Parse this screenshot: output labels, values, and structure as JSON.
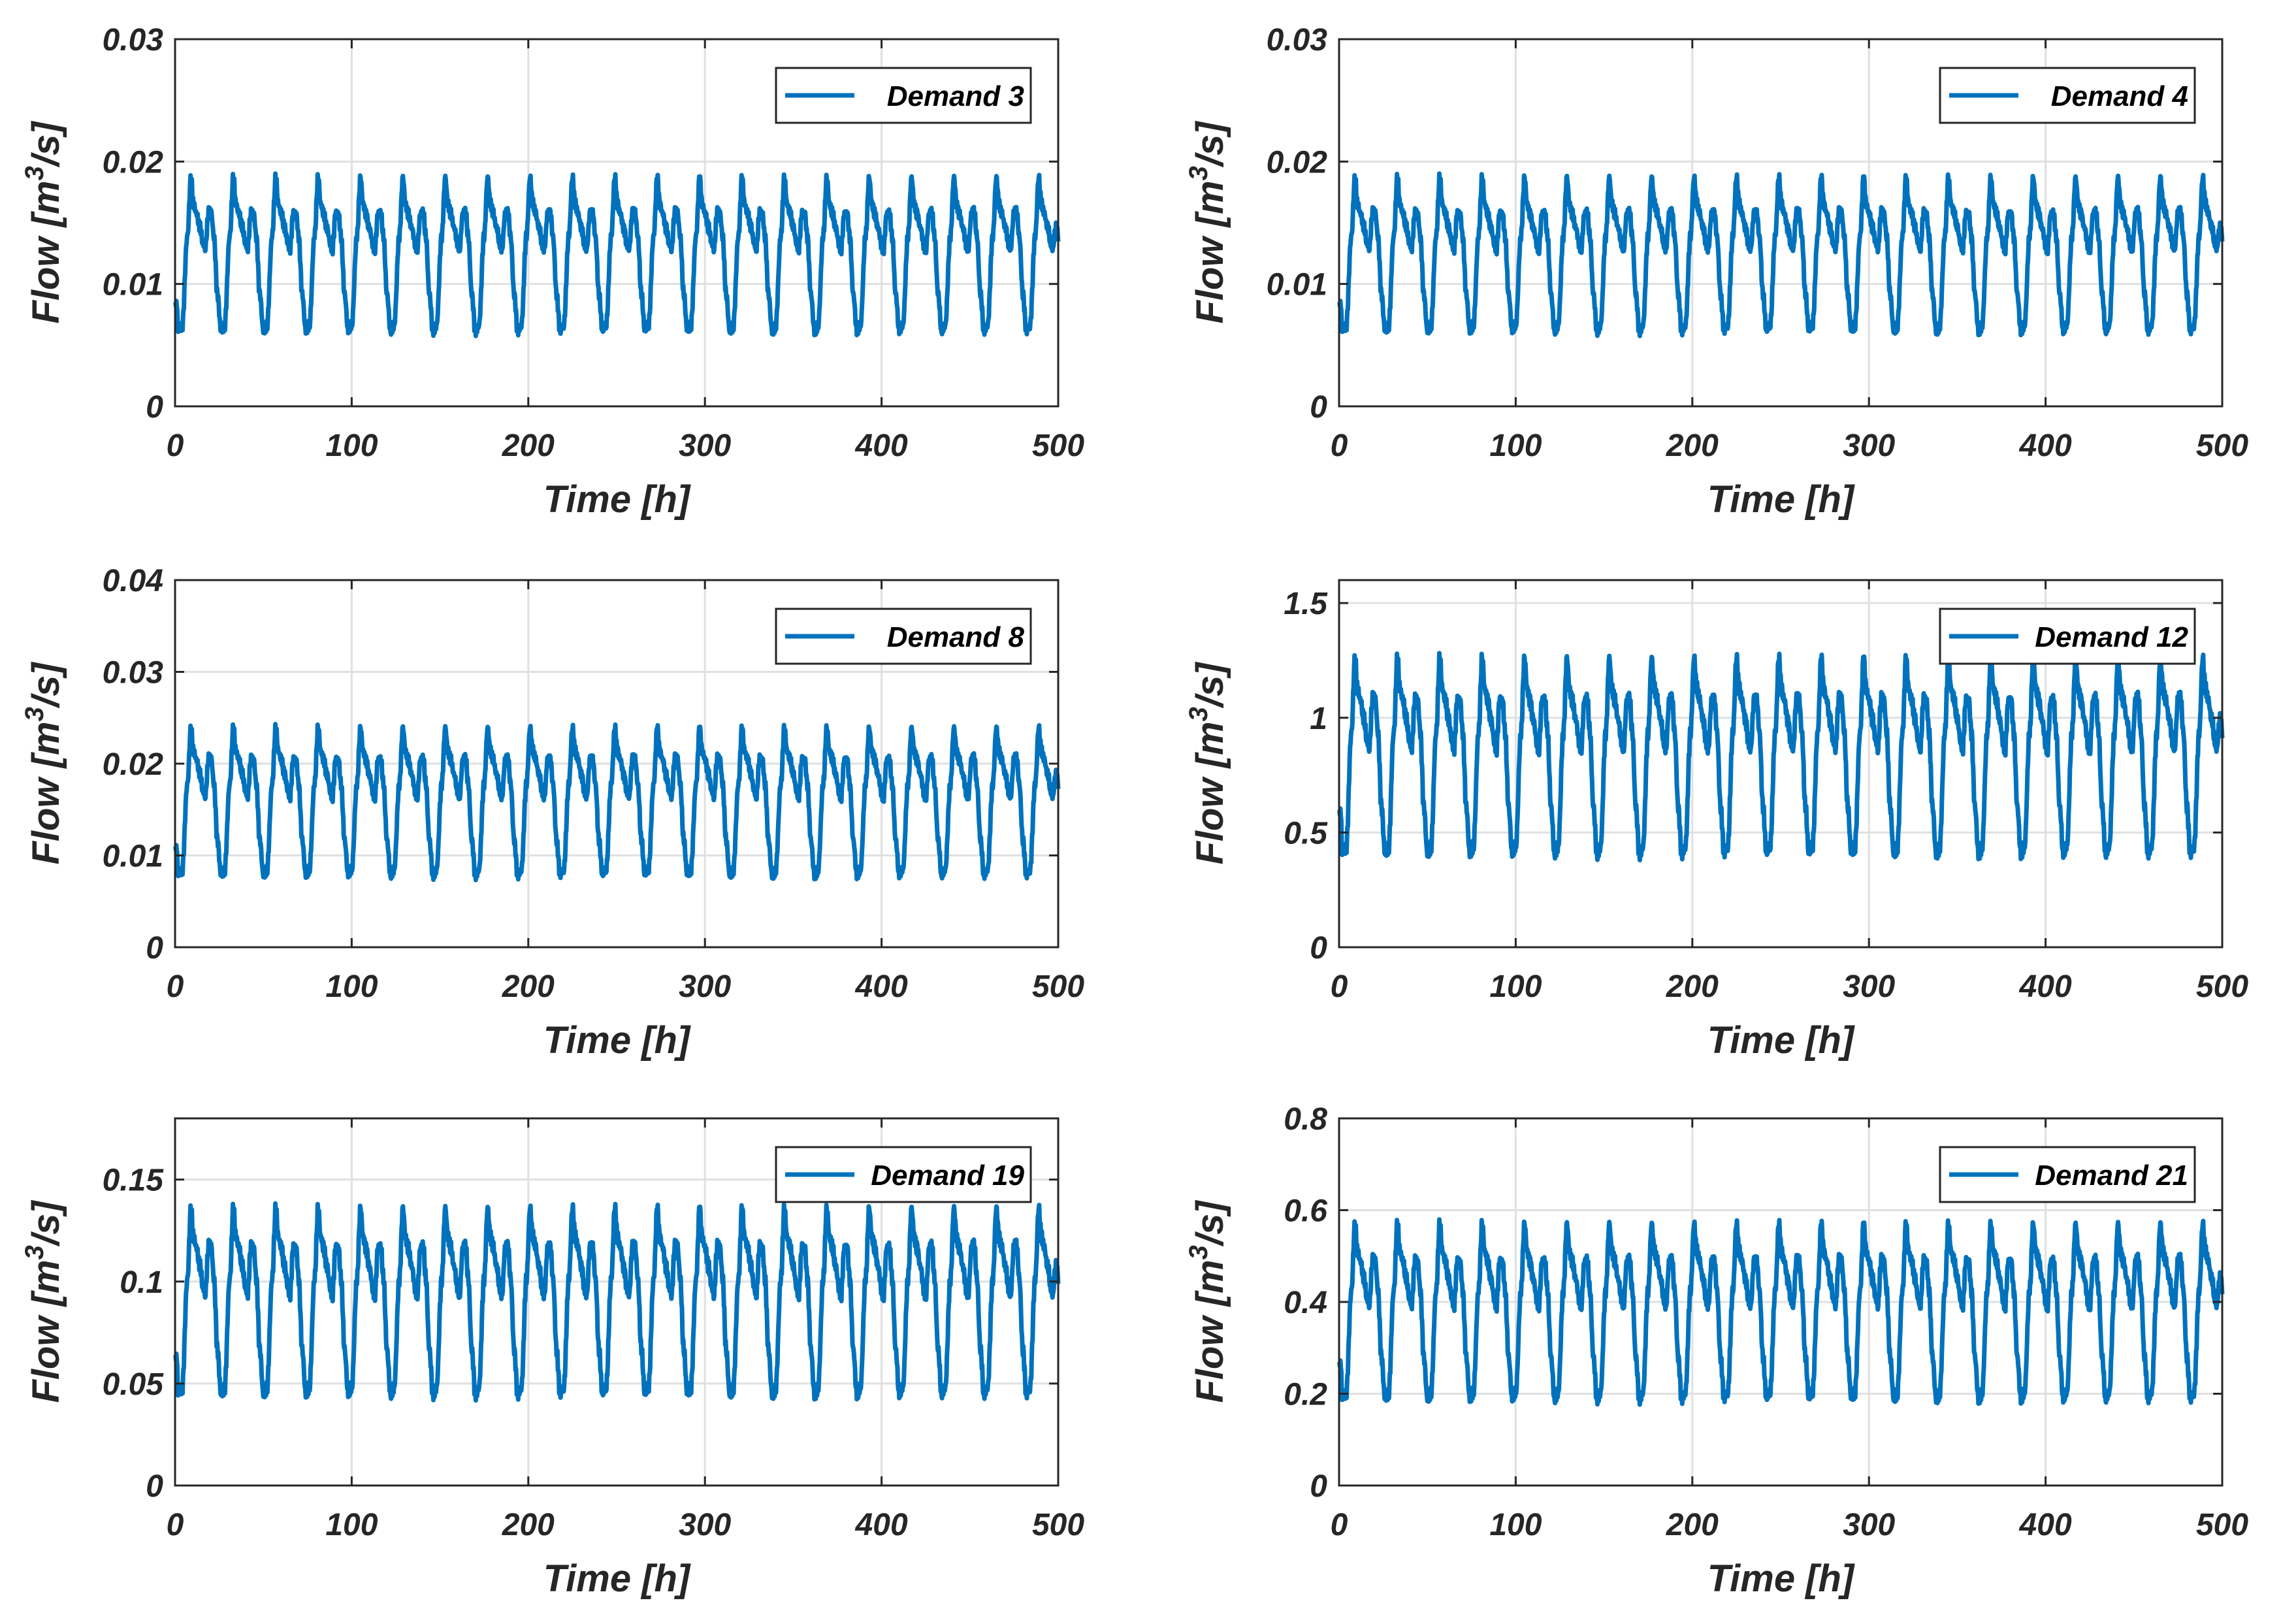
{
  "figure": {
    "line_color": "#0072BD",
    "grid_color": "#e0e0e0",
    "axis_color": "#262626"
  },
  "chart_data": [
    {
      "type": "line",
      "legend": "Demand 3",
      "legend_position": "top-right",
      "xlabel": "Time [h]",
      "ylabel_main": "Flow [m",
      "ylabel_sup": "3",
      "ylabel_tail": "/s]",
      "xlim": [
        0,
        500
      ],
      "ylim": [
        0,
        0.03
      ],
      "xticks": [
        0,
        100,
        200,
        300,
        400,
        500
      ],
      "xtick_labels": [
        "0",
        "100",
        "200",
        "300",
        "400",
        "500"
      ],
      "yticks": [
        0,
        0.01,
        0.02,
        0.03
      ],
      "ytick_labels": [
        "0",
        "0.01",
        "0.02",
        "0.03"
      ],
      "grid": true,
      "series": {
        "period_h": 24,
        "min": 0.0062,
        "max": 0.0187,
        "plateau": 0.0158,
        "trough2": 0.0128,
        "start": 0.0085,
        "end": 0.0139
      }
    },
    {
      "type": "line",
      "legend": "Demand 4",
      "legend_position": "top-right",
      "xlabel": "Time [h]",
      "ylabel_main": "Flow [m",
      "ylabel_sup": "3",
      "ylabel_tail": "/s]",
      "xlim": [
        0,
        500
      ],
      "ylim": [
        0,
        0.03
      ],
      "xticks": [
        0,
        100,
        200,
        300,
        400,
        500
      ],
      "xtick_labels": [
        "0",
        "100",
        "200",
        "300",
        "400",
        "500"
      ],
      "yticks": [
        0,
        0.01,
        0.02,
        0.03
      ],
      "ytick_labels": [
        "0",
        "0.01",
        "0.02",
        "0.03"
      ],
      "grid": true,
      "series": {
        "period_h": 24,
        "min": 0.0062,
        "max": 0.0187,
        "plateau": 0.0158,
        "trough2": 0.0128,
        "start": 0.0085,
        "end": 0.0139
      }
    },
    {
      "type": "line",
      "legend": "Demand 8",
      "legend_position": "top-right",
      "xlabel": "Time [h]",
      "ylabel_main": "Flow [m",
      "ylabel_sup": "3",
      "ylabel_tail": "/s]",
      "xlim": [
        0,
        500
      ],
      "ylim": [
        0,
        0.04
      ],
      "xticks": [
        0,
        100,
        200,
        300,
        400,
        500
      ],
      "xtick_labels": [
        "0",
        "100",
        "200",
        "300",
        "400",
        "500"
      ],
      "yticks": [
        0,
        0.01,
        0.02,
        0.03,
        0.04
      ],
      "ytick_labels": [
        "0",
        "0.01",
        "0.02",
        "0.03",
        "0.04"
      ],
      "grid": true,
      "series": {
        "period_h": 24,
        "min": 0.0079,
        "max": 0.0239,
        "plateau": 0.0205,
        "trough2": 0.0163,
        "start": 0.011,
        "end": 0.0178
      }
    },
    {
      "type": "line",
      "legend": "Demand 12",
      "legend_position": "top-right",
      "xlabel": "Time [h]",
      "ylabel_main": "Flow [m",
      "ylabel_sup": "3",
      "ylabel_tail": "/s]",
      "xlim": [
        0,
        500
      ],
      "ylim": [
        0,
        1.6
      ],
      "xticks": [
        0,
        100,
        200,
        300,
        400,
        500
      ],
      "xtick_labels": [
        "0",
        "100",
        "200",
        "300",
        "400",
        "500"
      ],
      "yticks": [
        0,
        0.5,
        1,
        1.5
      ],
      "ytick_labels": [
        "0",
        "0.5",
        "1",
        "1.5"
      ],
      "grid": true,
      "series": {
        "period_h": 24,
        "min": 0.41,
        "max": 1.26,
        "plateau": 1.08,
        "trough2": 0.86,
        "start": 0.6,
        "end": 0.94
      }
    },
    {
      "type": "line",
      "legend": "Demand 19",
      "legend_position": "top-right",
      "xlabel": "Time [h]",
      "ylabel_main": "Flow [m",
      "ylabel_sup": "3",
      "ylabel_tail": "/s]",
      "xlim": [
        0,
        500
      ],
      "ylim": [
        0,
        0.18
      ],
      "xticks": [
        0,
        100,
        200,
        300,
        400,
        500
      ],
      "xtick_labels": [
        "0",
        "100",
        "200",
        "300",
        "400",
        "500"
      ],
      "yticks": [
        0,
        0.05,
        0.1,
        0.15
      ],
      "ytick_labels": [
        "0",
        "0.05",
        "0.1",
        "0.15"
      ],
      "grid": true,
      "series": {
        "period_h": 24,
        "min": 0.045,
        "max": 0.136,
        "plateau": 0.117,
        "trough2": 0.093,
        "start": 0.064,
        "end": 0.102
      }
    },
    {
      "type": "line",
      "legend": "Demand 21",
      "legend_position": "top-right",
      "xlabel": "Time [h]",
      "ylabel_main": "Flow [m",
      "ylabel_sup": "3",
      "ylabel_tail": "/s]",
      "xlim": [
        0,
        500
      ],
      "ylim": [
        0,
        0.8
      ],
      "xticks": [
        0,
        100,
        200,
        300,
        400,
        500
      ],
      "xtick_labels": [
        "0",
        "100",
        "200",
        "300",
        "400",
        "500"
      ],
      "yticks": [
        0,
        0.2,
        0.4,
        0.6,
        0.8
      ],
      "ytick_labels": [
        "0",
        "0.2",
        "0.4",
        "0.6",
        "0.8"
      ],
      "grid": true,
      "series": {
        "period_h": 24,
        "min": 0.19,
        "max": 0.57,
        "plateau": 0.49,
        "trough2": 0.39,
        "start": 0.27,
        "end": 0.43
      }
    }
  ]
}
